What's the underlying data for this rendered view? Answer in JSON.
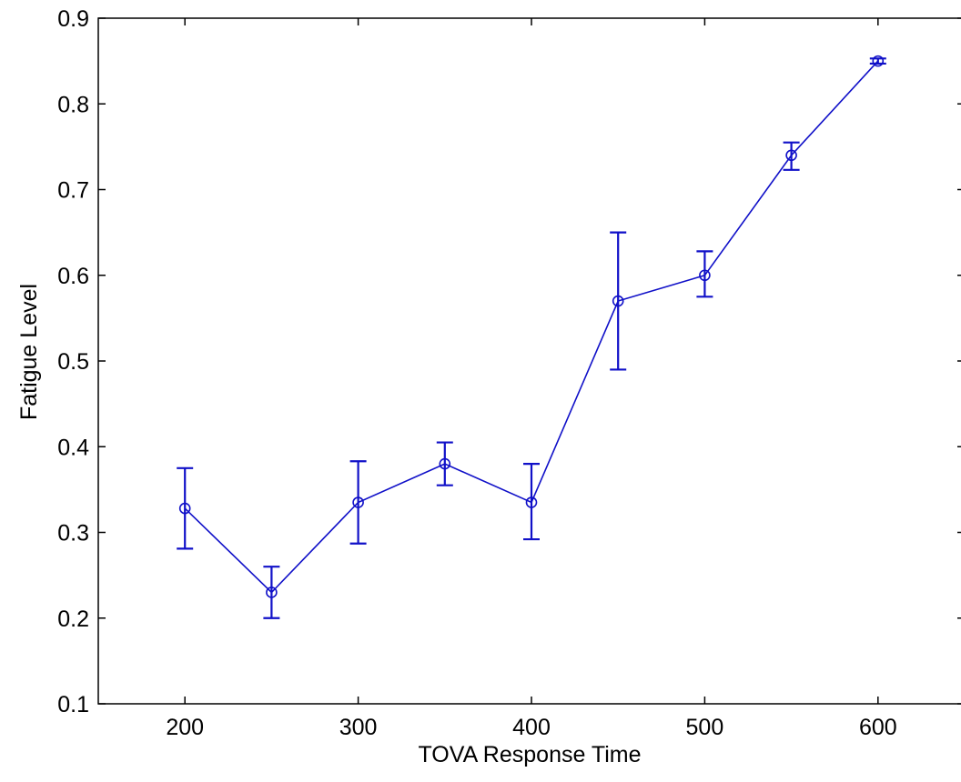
{
  "chart_data": {
    "type": "line",
    "title": "",
    "xlabel": "TOVA Response Time",
    "ylabel": "Fatigue Level",
    "xlim": [
      150,
      650
    ],
    "ylim": [
      0.1,
      0.9
    ],
    "xticks": [
      200,
      300,
      400,
      500,
      600
    ],
    "xtick_labels": [
      "200",
      "300",
      "400",
      "500",
      "600"
    ],
    "yticks": [
      0.1,
      0.2,
      0.3,
      0.4,
      0.5,
      0.6,
      0.7,
      0.8,
      0.9
    ],
    "ytick_labels": [
      "0.1",
      "0.2",
      "0.3",
      "0.4",
      "0.5",
      "0.6",
      "0.7",
      "0.8",
      "0.9"
    ],
    "grid": false,
    "legend": "none",
    "series": [
      {
        "marker": "circle",
        "color": "#1010c8",
        "x": [
          200,
          250,
          300,
          350,
          400,
          450,
          500,
          550,
          600
        ],
        "y": [
          0.328,
          0.23,
          0.335,
          0.38,
          0.335,
          0.57,
          0.6,
          0.74,
          0.85
        ],
        "err_lower": [
          0.281,
          0.2,
          0.287,
          0.355,
          0.292,
          0.49,
          0.575,
          0.723,
          0.847
        ],
        "err_upper": [
          0.375,
          0.26,
          0.383,
          0.405,
          0.38,
          0.65,
          0.628,
          0.755,
          0.853
        ]
      }
    ]
  }
}
